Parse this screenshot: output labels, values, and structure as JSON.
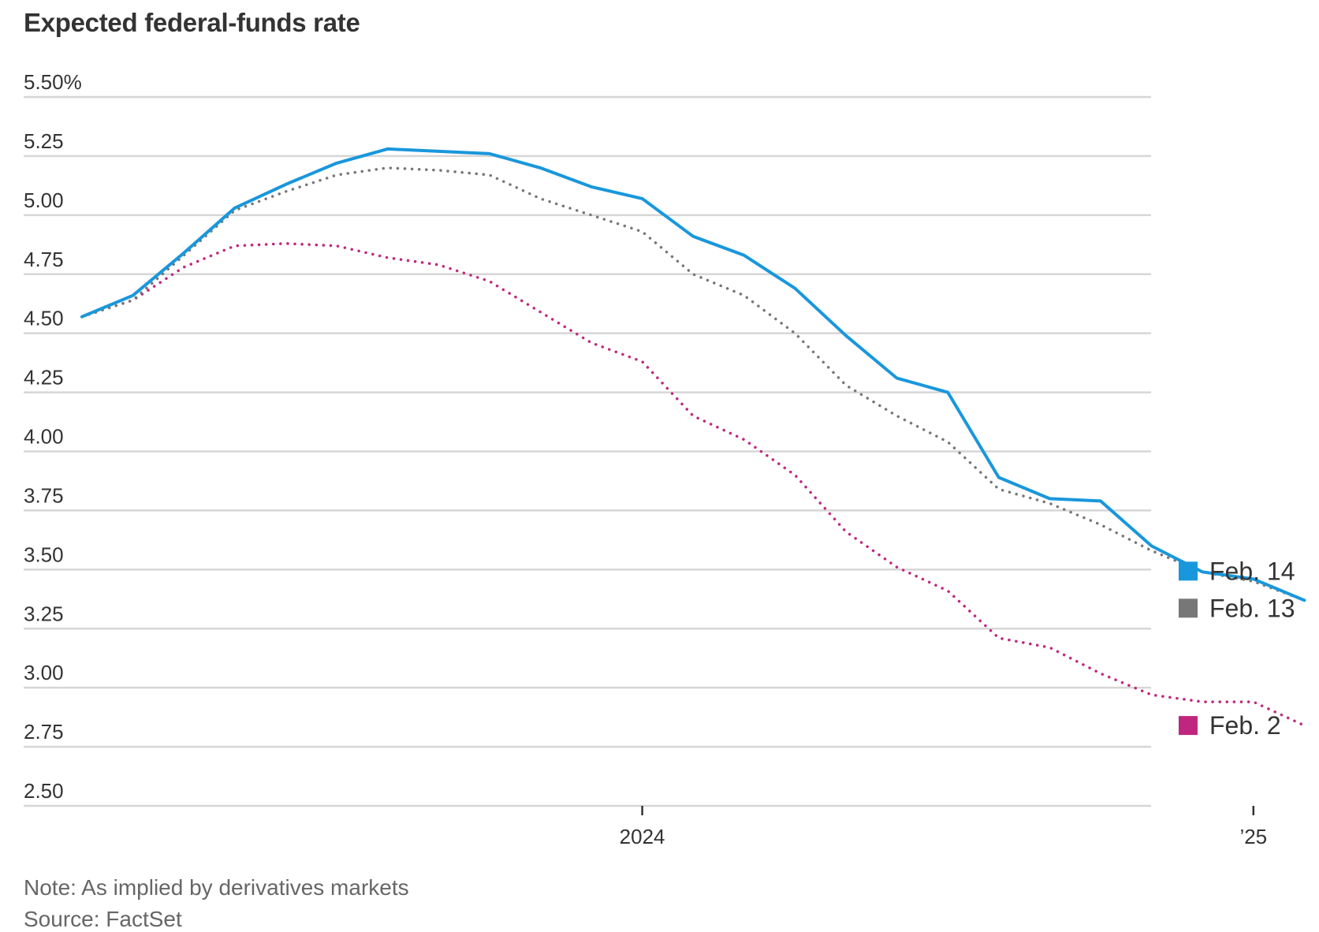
{
  "chart_data": {
    "type": "line",
    "title": "Expected federal-funds rate",
    "xlabel": "",
    "ylabel": "",
    "y_tick_labels": [
      "5.50%",
      "5.25",
      "5.00",
      "4.75",
      "4.50",
      "4.25",
      "4.00",
      "3.75",
      "3.50",
      "3.25",
      "3.00",
      "2.75",
      "2.50"
    ],
    "y_ticks": [
      5.5,
      5.25,
      5.0,
      4.75,
      4.5,
      4.25,
      4.0,
      3.75,
      3.5,
      3.25,
      3.0,
      2.75,
      2.5
    ],
    "ylim": [
      2.5,
      5.5
    ],
    "x": [
      "2023-02",
      "2023-03",
      "2023-04",
      "2023-05",
      "2023-06",
      "2023-07",
      "2023-08",
      "2023-09",
      "2023-10",
      "2023-11",
      "2023-12",
      "2024-01",
      "2024-02",
      "2024-03",
      "2024-04",
      "2024-05",
      "2024-06",
      "2024-07",
      "2024-08",
      "2024-09",
      "2024-10",
      "2024-11",
      "2024-12",
      "2025-01",
      "2025-02"
    ],
    "x_ticks": [
      {
        "label": "2024",
        "x": "2024-01"
      },
      {
        "label": "’25",
        "x": "2025-01"
      }
    ],
    "grid": true,
    "legend_position": "right",
    "series": [
      {
        "name": "Feb. 14",
        "color": "#1997dc",
        "style": "solid",
        "values": [
          4.57,
          4.66,
          4.84,
          5.03,
          5.13,
          5.22,
          5.28,
          5.27,
          5.26,
          5.2,
          5.12,
          5.07,
          4.91,
          4.83,
          4.69,
          4.49,
          4.31,
          4.25,
          3.89,
          3.8,
          3.79,
          3.6,
          3.49,
          3.46,
          3.37
        ]
      },
      {
        "name": "Feb. 13",
        "color": "#777777",
        "style": "dotted",
        "values": [
          4.57,
          4.64,
          4.83,
          5.02,
          5.1,
          5.17,
          5.2,
          5.19,
          5.17,
          5.07,
          5.0,
          4.93,
          4.75,
          4.66,
          4.5,
          4.28,
          4.15,
          4.04,
          3.84,
          3.78,
          3.69,
          3.58,
          3.49,
          3.45,
          3.37
        ]
      },
      {
        "name": "Feb. 2",
        "color": "#c0267f",
        "style": "dotted",
        "values": [
          4.57,
          4.64,
          4.78,
          4.87,
          4.88,
          4.87,
          4.82,
          4.79,
          4.72,
          4.59,
          4.46,
          4.38,
          4.15,
          4.05,
          3.9,
          3.66,
          3.51,
          3.41,
          3.21,
          3.17,
          3.06,
          2.97,
          2.94,
          2.94,
          2.84
        ]
      }
    ],
    "notes": [
      "Note: As implied by derivatives markets",
      "Source: FactSet"
    ]
  }
}
